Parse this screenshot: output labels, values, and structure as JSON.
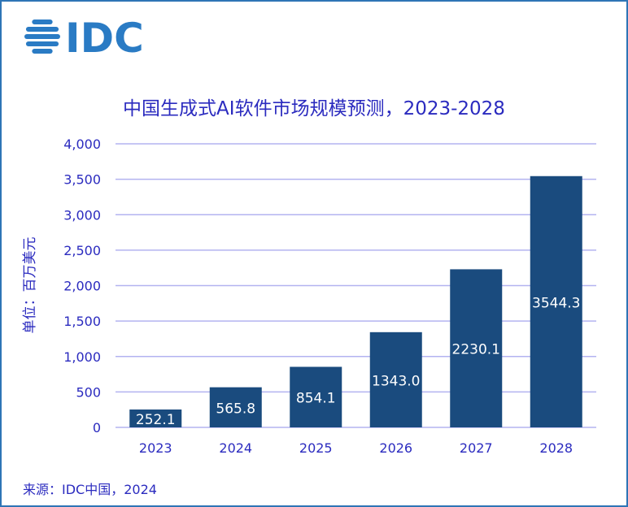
{
  "logo": {
    "text": "IDC",
    "color": "#2a7bc4"
  },
  "chart_data": {
    "type": "bar",
    "title": "中国生成式AI软件市场规模预测，2023-2028",
    "ylabel": "单位：百万美元",
    "xlabel": "",
    "categories": [
      "2023",
      "2024",
      "2025",
      "2026",
      "2027",
      "2028"
    ],
    "values": [
      252.1,
      565.8,
      854.1,
      1343.0,
      2230.1,
      3544.3
    ],
    "data_labels": [
      "252.1",
      "565.8",
      "854.1",
      "1343.0",
      "2230.1",
      "3544.3"
    ],
    "ylim": [
      0,
      4000
    ],
    "yticks": [
      0,
      500,
      1000,
      1500,
      2000,
      2500,
      3000,
      3500,
      4000
    ],
    "ytick_labels": [
      "0",
      "500",
      "1,000",
      "1,500",
      "2,000",
      "2,500",
      "3,000",
      "3,500",
      "4,000"
    ],
    "grid": true,
    "bar_color": "#1a4b7e",
    "grid_color": "#b3b3f0",
    "text_color": "#2b2bbf",
    "source": "来源：IDC中国，2024"
  }
}
